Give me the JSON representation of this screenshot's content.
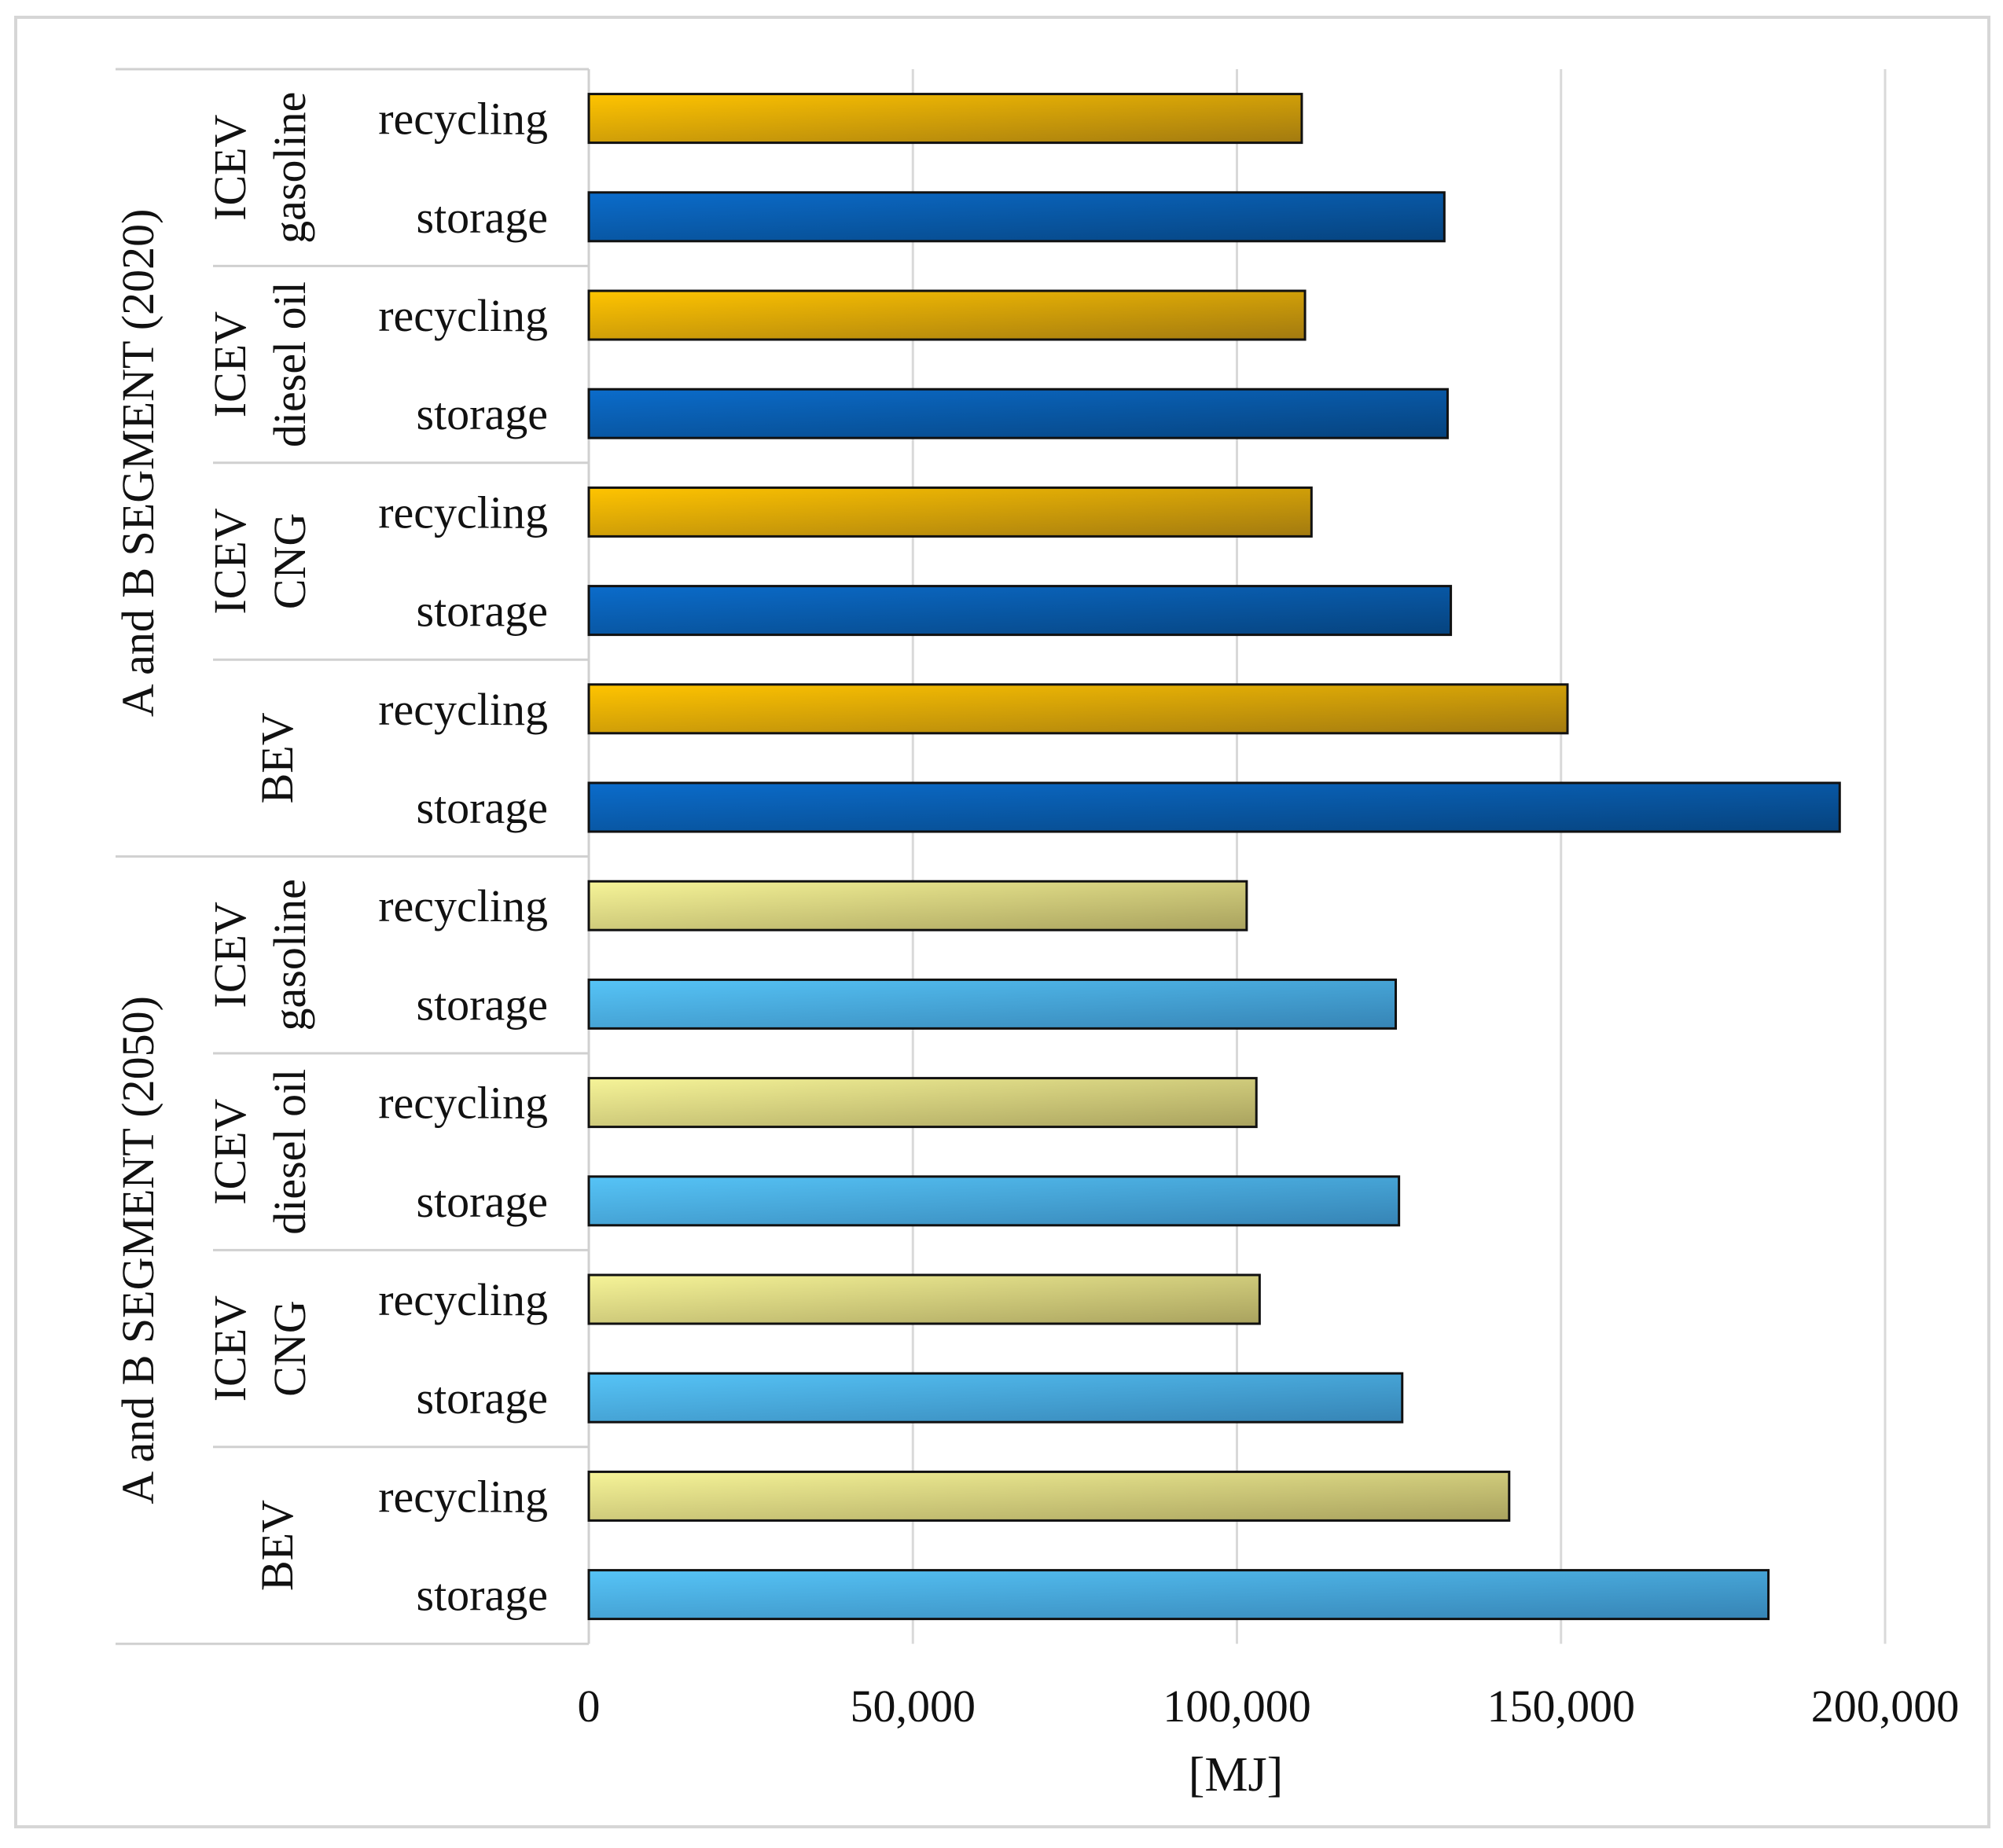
{
  "chart_data": {
    "type": "bar",
    "orientation": "horizontal",
    "title": "",
    "xlabel": "[MJ]",
    "ylabel": "",
    "xlim": [
      0,
      200000
    ],
    "x_ticks": [
      0,
      50000,
      100000,
      150000,
      200000
    ],
    "x_tick_labels": [
      "0",
      "50,000",
      "100,000",
      "150,000",
      "200,000"
    ],
    "grid": "vertical",
    "legend": "none",
    "colors": {
      "recycling_2020": "#f2b400",
      "storage_2020": "#0a5fb4",
      "recycling_2050": "#e8e48a",
      "storage_2050": "#4ab8ec"
    },
    "groups": [
      {
        "label": "A and B SEGMENT (2020)",
        "subgroups": [
          {
            "label_lines": [
              "ICEV",
              "gasoline"
            ],
            "bars": [
              {
                "label": "recycling",
                "value": 110000
              },
              {
                "label": "storage",
                "value": 132000
              }
            ]
          },
          {
            "label_lines": [
              "ICEV",
              "diesel oil"
            ],
            "bars": [
              {
                "label": "recycling",
                "value": 110500
              },
              {
                "label": "storage",
                "value": 132500
              }
            ]
          },
          {
            "label_lines": [
              "ICEV",
              "CNG"
            ],
            "bars": [
              {
                "label": "recycling",
                "value": 111500
              },
              {
                "label": "storage",
                "value": 133000
              }
            ]
          },
          {
            "label_lines": [
              "BEV"
            ],
            "bars": [
              {
                "label": "recycling",
                "value": 151000
              },
              {
                "label": "storage",
                "value": 193000
              }
            ]
          }
        ]
      },
      {
        "label": "A and B SEGMENT (2050)",
        "subgroups": [
          {
            "label_lines": [
              "ICEV",
              "gasoline"
            ],
            "bars": [
              {
                "label": "recycling",
                "value": 101500
              },
              {
                "label": "storage",
                "value": 124500
              }
            ]
          },
          {
            "label_lines": [
              "ICEV",
              "diesel oil"
            ],
            "bars": [
              {
                "label": "recycling",
                "value": 103000
              },
              {
                "label": "storage",
                "value": 125000
              }
            ]
          },
          {
            "label_lines": [
              "ICEV",
              "CNG"
            ],
            "bars": [
              {
                "label": "recycling",
                "value": 103500
              },
              {
                "label": "storage",
                "value": 125500
              }
            ]
          },
          {
            "label_lines": [
              "BEV"
            ],
            "bars": [
              {
                "label": "recycling",
                "value": 142000
              },
              {
                "label": "storage",
                "value": 182000
              }
            ]
          }
        ]
      }
    ]
  }
}
